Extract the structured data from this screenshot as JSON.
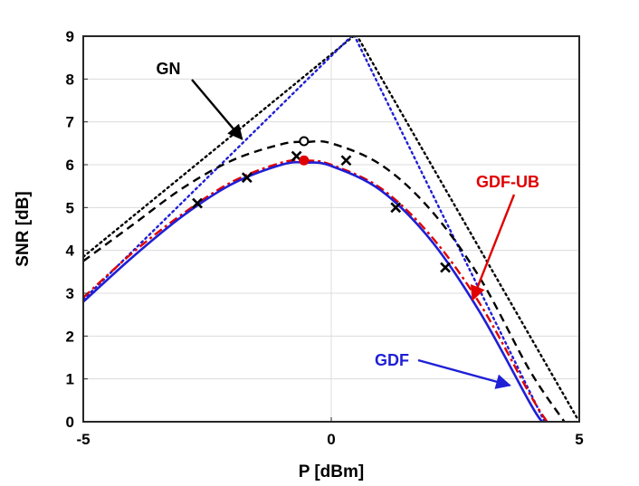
{
  "chart_data": {
    "type": "line",
    "title": "",
    "xlabel": "P [dBm]",
    "ylabel": "SNR [dB]",
    "xlim": [
      -5,
      5
    ],
    "ylim": [
      0,
      9
    ],
    "xticks": [
      -5,
      0,
      5
    ],
    "yticks": [
      0,
      1,
      2,
      3,
      4,
      5,
      6,
      7,
      8,
      9
    ],
    "grid": true,
    "series": [
      {
        "style": "dotted",
        "color": "#000000",
        "x": [
          -5,
          0.5,
          4.95
        ],
        "y": [
          3.85,
          9.05,
          0.1
        ]
      },
      {
        "style": "dotted",
        "color": "#1f1fd6",
        "x": [
          -5,
          0.45,
          4.3
        ],
        "y": [
          2.85,
          9.05,
          0.0
        ]
      },
      {
        "style": "dashed",
        "color": "#000000",
        "x": [
          -5,
          -4,
          -3,
          -2,
          -1,
          -0.5,
          0,
          1,
          2,
          3,
          4,
          4.7
        ],
        "y": [
          3.75,
          4.6,
          5.45,
          6.1,
          6.48,
          6.53,
          6.5,
          6.0,
          4.95,
          3.35,
          1.2,
          0.0
        ]
      },
      {
        "style": "dashdot",
        "color": "#e00000",
        "x": [
          -5,
          -4,
          -3,
          -2,
          -1,
          -0.5,
          0,
          1,
          2,
          3,
          4,
          4.35
        ],
        "y": [
          2.9,
          3.95,
          4.85,
          5.6,
          6.05,
          6.1,
          6.0,
          5.45,
          4.35,
          2.75,
          0.65,
          0.0
        ]
      },
      {
        "style": "solid",
        "color": "#1f1fd6",
        "x": [
          -5,
          -4,
          -3,
          -2,
          -1,
          -0.5,
          0,
          1,
          2,
          3,
          4,
          4.25
        ],
        "y": [
          2.8,
          3.85,
          4.8,
          5.55,
          6.0,
          6.05,
          5.97,
          5.4,
          4.25,
          2.55,
          0.45,
          0.0
        ]
      }
    ],
    "markers": [
      {
        "symbol": "x",
        "color": "#000000",
        "x": [
          -2.7,
          -1.7,
          -0.7,
          0.3,
          1.3,
          2.3
        ],
        "y": [
          5.1,
          5.7,
          6.2,
          6.1,
          5.0,
          3.6
        ]
      },
      {
        "symbol": "open-circle",
        "color": "#000000",
        "x": [
          -0.55
        ],
        "y": [
          6.55
        ]
      },
      {
        "symbol": "filled-circle",
        "color": "#e00000",
        "x": [
          -0.55
        ],
        "y": [
          6.1
        ]
      }
    ],
    "annotations": [
      {
        "text": "GN",
        "color": "#000000",
        "arrow_to": [
          -1.8,
          6.6
        ]
      },
      {
        "text": "GDF-UB",
        "color": "#e00000",
        "arrow_to": [
          2.85,
          2.85
        ]
      },
      {
        "text": "GDF",
        "color": "#1f1fd6",
        "arrow_to": [
          3.6,
          0.85
        ]
      }
    ]
  }
}
